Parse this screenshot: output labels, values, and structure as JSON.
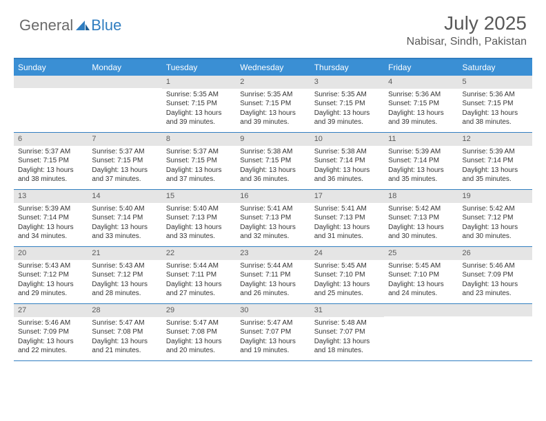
{
  "brand": {
    "part1": "General",
    "part2": "Blue"
  },
  "title": "July 2025",
  "location": "Nabisar, Sindh, Pakistan",
  "colors": {
    "header_bg": "#3a8fd4",
    "header_border": "#2f7dc0",
    "daynum_bg": "#e5e5e5",
    "text": "#333333",
    "title_text": "#595959",
    "logo_gray": "#6a6a6a",
    "logo_blue": "#2f7dc0"
  },
  "day_headers": [
    "Sunday",
    "Monday",
    "Tuesday",
    "Wednesday",
    "Thursday",
    "Friday",
    "Saturday"
  ],
  "weeks": [
    [
      null,
      null,
      {
        "n": "1",
        "sr": "Sunrise: 5:35 AM",
        "ss": "Sunset: 7:15 PM",
        "d1": "Daylight: 13 hours",
        "d2": "and 39 minutes."
      },
      {
        "n": "2",
        "sr": "Sunrise: 5:35 AM",
        "ss": "Sunset: 7:15 PM",
        "d1": "Daylight: 13 hours",
        "d2": "and 39 minutes."
      },
      {
        "n": "3",
        "sr": "Sunrise: 5:35 AM",
        "ss": "Sunset: 7:15 PM",
        "d1": "Daylight: 13 hours",
        "d2": "and 39 minutes."
      },
      {
        "n": "4",
        "sr": "Sunrise: 5:36 AM",
        "ss": "Sunset: 7:15 PM",
        "d1": "Daylight: 13 hours",
        "d2": "and 39 minutes."
      },
      {
        "n": "5",
        "sr": "Sunrise: 5:36 AM",
        "ss": "Sunset: 7:15 PM",
        "d1": "Daylight: 13 hours",
        "d2": "and 38 minutes."
      }
    ],
    [
      {
        "n": "6",
        "sr": "Sunrise: 5:37 AM",
        "ss": "Sunset: 7:15 PM",
        "d1": "Daylight: 13 hours",
        "d2": "and 38 minutes."
      },
      {
        "n": "7",
        "sr": "Sunrise: 5:37 AM",
        "ss": "Sunset: 7:15 PM",
        "d1": "Daylight: 13 hours",
        "d2": "and 37 minutes."
      },
      {
        "n": "8",
        "sr": "Sunrise: 5:37 AM",
        "ss": "Sunset: 7:15 PM",
        "d1": "Daylight: 13 hours",
        "d2": "and 37 minutes."
      },
      {
        "n": "9",
        "sr": "Sunrise: 5:38 AM",
        "ss": "Sunset: 7:15 PM",
        "d1": "Daylight: 13 hours",
        "d2": "and 36 minutes."
      },
      {
        "n": "10",
        "sr": "Sunrise: 5:38 AM",
        "ss": "Sunset: 7:14 PM",
        "d1": "Daylight: 13 hours",
        "d2": "and 36 minutes."
      },
      {
        "n": "11",
        "sr": "Sunrise: 5:39 AM",
        "ss": "Sunset: 7:14 PM",
        "d1": "Daylight: 13 hours",
        "d2": "and 35 minutes."
      },
      {
        "n": "12",
        "sr": "Sunrise: 5:39 AM",
        "ss": "Sunset: 7:14 PM",
        "d1": "Daylight: 13 hours",
        "d2": "and 35 minutes."
      }
    ],
    [
      {
        "n": "13",
        "sr": "Sunrise: 5:39 AM",
        "ss": "Sunset: 7:14 PM",
        "d1": "Daylight: 13 hours",
        "d2": "and 34 minutes."
      },
      {
        "n": "14",
        "sr": "Sunrise: 5:40 AM",
        "ss": "Sunset: 7:14 PM",
        "d1": "Daylight: 13 hours",
        "d2": "and 33 minutes."
      },
      {
        "n": "15",
        "sr": "Sunrise: 5:40 AM",
        "ss": "Sunset: 7:13 PM",
        "d1": "Daylight: 13 hours",
        "d2": "and 33 minutes."
      },
      {
        "n": "16",
        "sr": "Sunrise: 5:41 AM",
        "ss": "Sunset: 7:13 PM",
        "d1": "Daylight: 13 hours",
        "d2": "and 32 minutes."
      },
      {
        "n": "17",
        "sr": "Sunrise: 5:41 AM",
        "ss": "Sunset: 7:13 PM",
        "d1": "Daylight: 13 hours",
        "d2": "and 31 minutes."
      },
      {
        "n": "18",
        "sr": "Sunrise: 5:42 AM",
        "ss": "Sunset: 7:13 PM",
        "d1": "Daylight: 13 hours",
        "d2": "and 30 minutes."
      },
      {
        "n": "19",
        "sr": "Sunrise: 5:42 AM",
        "ss": "Sunset: 7:12 PM",
        "d1": "Daylight: 13 hours",
        "d2": "and 30 minutes."
      }
    ],
    [
      {
        "n": "20",
        "sr": "Sunrise: 5:43 AM",
        "ss": "Sunset: 7:12 PM",
        "d1": "Daylight: 13 hours",
        "d2": "and 29 minutes."
      },
      {
        "n": "21",
        "sr": "Sunrise: 5:43 AM",
        "ss": "Sunset: 7:12 PM",
        "d1": "Daylight: 13 hours",
        "d2": "and 28 minutes."
      },
      {
        "n": "22",
        "sr": "Sunrise: 5:44 AM",
        "ss": "Sunset: 7:11 PM",
        "d1": "Daylight: 13 hours",
        "d2": "and 27 minutes."
      },
      {
        "n": "23",
        "sr": "Sunrise: 5:44 AM",
        "ss": "Sunset: 7:11 PM",
        "d1": "Daylight: 13 hours",
        "d2": "and 26 minutes."
      },
      {
        "n": "24",
        "sr": "Sunrise: 5:45 AM",
        "ss": "Sunset: 7:10 PM",
        "d1": "Daylight: 13 hours",
        "d2": "and 25 minutes."
      },
      {
        "n": "25",
        "sr": "Sunrise: 5:45 AM",
        "ss": "Sunset: 7:10 PM",
        "d1": "Daylight: 13 hours",
        "d2": "and 24 minutes."
      },
      {
        "n": "26",
        "sr": "Sunrise: 5:46 AM",
        "ss": "Sunset: 7:09 PM",
        "d1": "Daylight: 13 hours",
        "d2": "and 23 minutes."
      }
    ],
    [
      {
        "n": "27",
        "sr": "Sunrise: 5:46 AM",
        "ss": "Sunset: 7:09 PM",
        "d1": "Daylight: 13 hours",
        "d2": "and 22 minutes."
      },
      {
        "n": "28",
        "sr": "Sunrise: 5:47 AM",
        "ss": "Sunset: 7:08 PM",
        "d1": "Daylight: 13 hours",
        "d2": "and 21 minutes."
      },
      {
        "n": "29",
        "sr": "Sunrise: 5:47 AM",
        "ss": "Sunset: 7:08 PM",
        "d1": "Daylight: 13 hours",
        "d2": "and 20 minutes."
      },
      {
        "n": "30",
        "sr": "Sunrise: 5:47 AM",
        "ss": "Sunset: 7:07 PM",
        "d1": "Daylight: 13 hours",
        "d2": "and 19 minutes."
      },
      {
        "n": "31",
        "sr": "Sunrise: 5:48 AM",
        "ss": "Sunset: 7:07 PM",
        "d1": "Daylight: 13 hours",
        "d2": "and 18 minutes."
      },
      null,
      null
    ]
  ]
}
